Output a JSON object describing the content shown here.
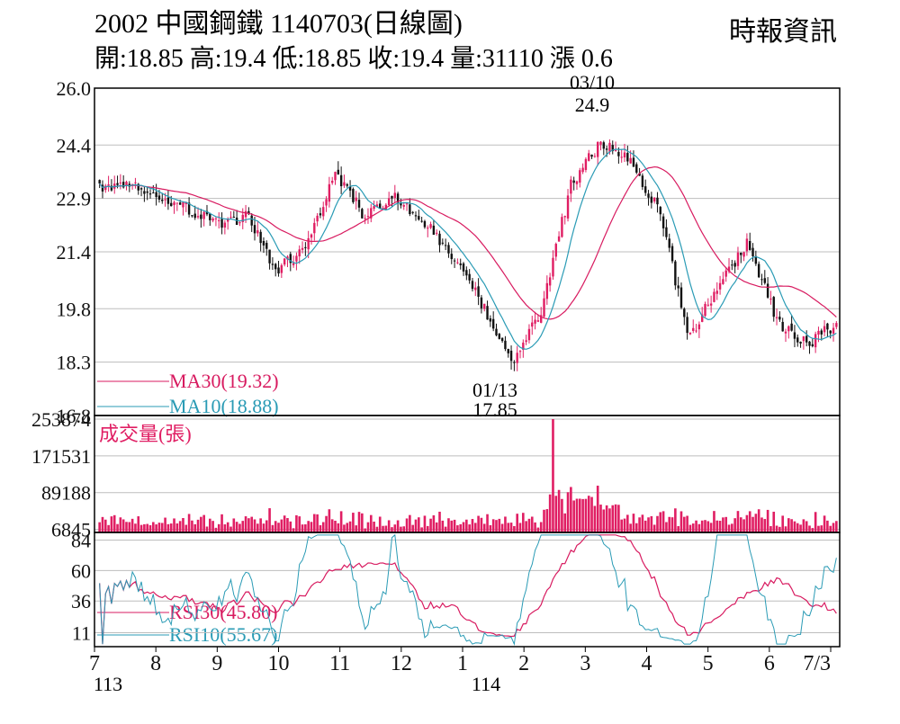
{
  "header": {
    "title": "2002  中國鋼鐵 1140703(日線圖)",
    "ohlc": "開:18.85 高:19.4 低:18.85 收:19.4 量:31110 漲 0.6",
    "source": "時報資訊"
  },
  "colors": {
    "up": "#e01e63",
    "down": "#111111",
    "ma30": "#d81b60",
    "ma10": "#2a9bb5",
    "volume": "#e01e63",
    "rsi30": "#d81b60",
    "rsi10": "#2a9bb5",
    "grid": "#bdbdbd",
    "frame": "#000000"
  },
  "chart_data": [
    {
      "type": "candlestick",
      "panel": "price",
      "ylim": [
        16.8,
        26.0
      ],
      "y_ticks": [
        "26.0",
        "24.4",
        "22.9",
        "21.4",
        "19.8",
        "18.3",
        "16.8"
      ],
      "y_tick_values": [
        26.0,
        24.4,
        22.9,
        21.4,
        19.8,
        18.3,
        16.8
      ],
      "annotations": {
        "high_date": "03/10",
        "high_value": "24.9",
        "low_date": "01/13",
        "low_value": "17.85"
      },
      "legend": [
        {
          "name": "MA30",
          "value": "(19.32)",
          "label_prefix": "MA30",
          "label_value": "(19.32)"
        },
        {
          "name": "MA10",
          "value": "(18.88)",
          "label_prefix": "MA10",
          "label_value": "(18.88)"
        }
      ],
      "key_closes": [
        {
          "month": "7",
          "close": 23.2
        },
        {
          "month": "7",
          "close": 23.3
        },
        {
          "month": "7",
          "close": 23.0
        },
        {
          "month": "8",
          "close": 22.6
        },
        {
          "month": "8",
          "close": 22.2
        },
        {
          "month": "8",
          "close": 22.4
        },
        {
          "month": "9",
          "close": 20.9
        },
        {
          "month": "9",
          "close": 21.5
        },
        {
          "month": "10",
          "close": 23.6
        },
        {
          "month": "10",
          "close": 22.4
        },
        {
          "month": "11",
          "close": 23.0
        },
        {
          "month": "11",
          "close": 22.3
        },
        {
          "month": "12",
          "close": 21.2
        },
        {
          "month": "12",
          "close": 19.9
        },
        {
          "month": "1",
          "close": 18.3
        },
        {
          "month": "1",
          "close": 19.8
        },
        {
          "month": "2",
          "close": 23.3
        },
        {
          "month": "3",
          "close": 24.5
        },
        {
          "month": "3",
          "close": 24.0
        },
        {
          "month": "4",
          "close": 22.5
        },
        {
          "month": "4",
          "close": 19.0
        },
        {
          "month": "5",
          "close": 20.4
        },
        {
          "month": "5",
          "close": 21.7
        },
        {
          "month": "6",
          "close": 19.4
        },
        {
          "month": "6",
          "close": 18.8
        },
        {
          "month": "7/3",
          "close": 19.4
        }
      ]
    },
    {
      "type": "bar",
      "panel": "volume",
      "title": "成交量(張)",
      "ylim": [
        0,
        253874
      ],
      "y_ticks": [
        "253874",
        "171531",
        "89188",
        "6845"
      ],
      "y_tick_values": [
        253874,
        171531,
        89188,
        6845
      ],
      "peak_volume": 253874
    },
    {
      "type": "line",
      "panel": "rsi",
      "ylim": [
        0,
        90
      ],
      "y_ticks": [
        "84",
        "60",
        "36",
        "11"
      ],
      "y_tick_values": [
        84,
        60,
        36,
        11
      ],
      "legend": [
        {
          "name": "RSI30",
          "value": "(45.80)",
          "label_prefix": "RSI30",
          "label_value": "(45.80)"
        },
        {
          "name": "RSI10",
          "value": "(55.67)",
          "label_prefix": "RSI10",
          "label_value": "(55.67)"
        }
      ]
    }
  ],
  "x_axis": {
    "month_labels": [
      "7",
      "8",
      "9",
      "10",
      "11",
      "12",
      "1",
      "2",
      "3",
      "4",
      "5",
      "6",
      "7/3"
    ],
    "year_labels": [
      {
        "month": "7",
        "year": "113"
      },
      {
        "month": "1",
        "year": "114"
      }
    ]
  }
}
